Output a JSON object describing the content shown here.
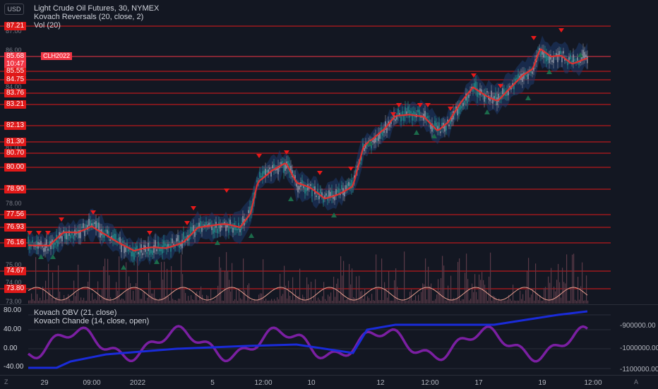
{
  "top_axis": {
    "currency": "USD"
  },
  "legend": {
    "line1": "Light Crude Oil Futures, 30, NYMEX",
    "line2": "Kovach Reversals (20, close, 2)",
    "line3": "Vol (20)"
  },
  "price_levels": [
    "87.21",
    "85.55",
    "84.75",
    "83.76",
    "83.21",
    "82.13",
    "81.30",
    "80.70",
    "80.00",
    "78.90",
    "77.56",
    "76.93",
    "76.16",
    "74.67",
    "73.80"
  ],
  "grey_ticks": [
    "87.00",
    "86.00",
    "84.00",
    "81.00",
    "78.00",
    "75.00",
    "74.00",
    "73.00"
  ],
  "current": {
    "price": "85.68",
    "countdown": "10:47",
    "symbol": "CLH2022"
  },
  "indicator": {
    "legend1": "Kovach OBV (21, close)",
    "legend2": "Kovach Chande (14, close, open)",
    "left_ticks": [
      "80.00",
      "40.00",
      "0.00",
      "-40.00"
    ],
    "right_ticks": [
      "-900000.00",
      "-1000000.00",
      "-1100000.00"
    ]
  },
  "time_axis": {
    "labels": [
      "29",
      "09:00",
      "2022",
      "5",
      "12:00",
      "10",
      "12",
      "12:00",
      "17",
      "19",
      "12:00"
    ],
    "left_corner": "Z",
    "right_corner": "A"
  },
  "colors": {
    "level_line": "#e01919",
    "ma_line": "#e03030",
    "band_fill": "#1e3a6e",
    "volume": "#5a3a48",
    "obv": "#1a2bd9",
    "chande": "#7b1fa2",
    "osc": "#e8a090",
    "down_marker": "#e81919",
    "up_marker": "#1b6b4a"
  }
}
